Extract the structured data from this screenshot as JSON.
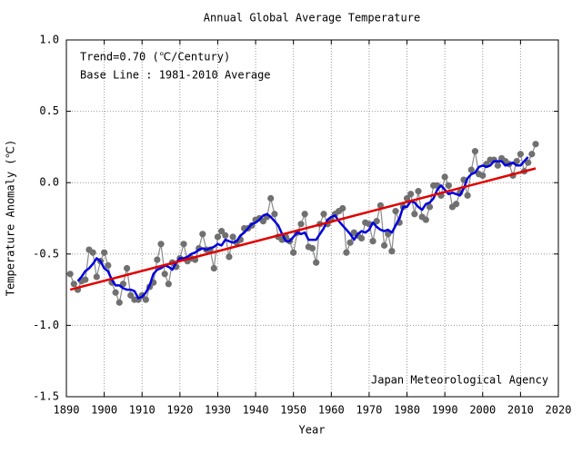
{
  "chart_data": {
    "type": "line",
    "title": "Annual Global Average Temperature",
    "xlabel": "Year",
    "ylabel": "Temperature Anomaly (℃)",
    "annotations": [
      "Trend=0.70 (℃/Century)",
      "Base Line : 1981-2010 Average",
      "Japan Meteorological Agency"
    ],
    "xlim": [
      1890,
      2020
    ],
    "xticks": [
      1890,
      1900,
      1910,
      1920,
      1930,
      1940,
      1950,
      1960,
      1970,
      1980,
      1990,
      2000,
      2010,
      2020
    ],
    "ylim": [
      -1.5,
      1.0
    ],
    "yticks": [
      {
        "value": 1.0,
        "label": "1.0"
      },
      0.5,
      {
        "value": 0.0,
        "label": "0.0"
      },
      -0.5,
      {
        "value": -1.0,
        "label": "-1.0"
      },
      -1.5
    ],
    "grid": true,
    "x": [
      1891,
      1892,
      1893,
      1894,
      1895,
      1896,
      1897,
      1898,
      1899,
      1900,
      1901,
      1902,
      1903,
      1904,
      1905,
      1906,
      1907,
      1908,
      1909,
      1910,
      1911,
      1912,
      1913,
      1914,
      1915,
      1916,
      1917,
      1918,
      1919,
      1920,
      1921,
      1922,
      1923,
      1924,
      1925,
      1926,
      1927,
      1928,
      1929,
      1930,
      1931,
      1932,
      1933,
      1934,
      1935,
      1936,
      1937,
      1938,
      1939,
      1940,
      1941,
      1942,
      1943,
      1944,
      1945,
      1946,
      1947,
      1948,
      1949,
      1950,
      1951,
      1952,
      1953,
      1954,
      1955,
      1956,
      1957,
      1958,
      1959,
      1960,
      1961,
      1962,
      1963,
      1964,
      1965,
      1966,
      1967,
      1968,
      1969,
      1970,
      1971,
      1972,
      1973,
      1974,
      1975,
      1976,
      1977,
      1978,
      1979,
      1980,
      1981,
      1982,
      1983,
      1984,
      1985,
      1986,
      1987,
      1988,
      1989,
      1990,
      1991,
      1992,
      1993,
      1994,
      1995,
      1996,
      1997,
      1998,
      1999,
      2000,
      2001,
      2002,
      2003,
      2004,
      2005,
      2006,
      2007,
      2008,
      2009,
      2010,
      2011,
      2012,
      2013,
      2014
    ],
    "series": [
      {
        "color": "#707070",
        "style": "points",
        "values": [
          -0.64,
          -0.71,
          -0.75,
          -0.69,
          -0.68,
          -0.47,
          -0.49,
          -0.66,
          -0.55,
          -0.49,
          -0.58,
          -0.7,
          -0.77,
          -0.84,
          -0.71,
          -0.6,
          -0.79,
          -0.82,
          -0.82,
          -0.79,
          -0.82,
          -0.73,
          -0.7,
          -0.54,
          -0.43,
          -0.64,
          -0.71,
          -0.56,
          -0.59,
          -0.53,
          -0.43,
          -0.55,
          -0.53,
          -0.54,
          -0.46,
          -0.36,
          -0.47,
          -0.47,
          -0.6,
          -0.38,
          -0.34,
          -0.37,
          -0.52,
          -0.38,
          -0.42,
          -0.4,
          -0.32,
          -0.32,
          -0.3,
          -0.26,
          -0.25,
          -0.27,
          -0.24,
          -0.11,
          -0.22,
          -0.38,
          -0.4,
          -0.38,
          -0.41,
          -0.49,
          -0.35,
          -0.29,
          -0.22,
          -0.45,
          -0.46,
          -0.56,
          -0.29,
          -0.22,
          -0.29,
          -0.26,
          -0.22,
          -0.2,
          -0.18,
          -0.49,
          -0.42,
          -0.35,
          -0.37,
          -0.39,
          -0.28,
          -0.29,
          -0.41,
          -0.27,
          -0.16,
          -0.44,
          -0.36,
          -0.48,
          -0.2,
          -0.28,
          -0.17,
          -0.11,
          -0.08,
          -0.22,
          -0.06,
          -0.24,
          -0.26,
          -0.17,
          -0.02,
          -0.02,
          -0.09,
          0.04,
          -0.02,
          -0.17,
          -0.15,
          -0.07,
          0.02,
          -0.09,
          0.09,
          0.22,
          0.06,
          0.05,
          0.13,
          0.16,
          0.16,
          0.12,
          0.17,
          0.15,
          0.13,
          0.05,
          0.15,
          0.2,
          0.08,
          0.14,
          0.2,
          0.27
        ]
      },
      {
        "color": "#0000dd",
        "style": "line",
        "values": [
          null,
          null,
          -0.69,
          -0.66,
          -0.62,
          -0.6,
          -0.57,
          -0.53,
          -0.55,
          -0.6,
          -0.62,
          -0.68,
          -0.72,
          -0.72,
          -0.74,
          -0.75,
          -0.75,
          -0.76,
          -0.81,
          -0.8,
          -0.77,
          -0.72,
          -0.64,
          -0.61,
          -0.6,
          -0.58,
          -0.59,
          -0.61,
          -0.56,
          -0.53,
          -0.53,
          -0.52,
          -0.5,
          -0.49,
          -0.47,
          -0.46,
          -0.47,
          -0.46,
          -0.45,
          -0.43,
          -0.44,
          -0.4,
          -0.41,
          -0.42,
          -0.41,
          -0.37,
          -0.35,
          -0.32,
          -0.29,
          -0.28,
          -0.26,
          -0.23,
          -0.22,
          -0.24,
          -0.27,
          -0.3,
          -0.36,
          -0.41,
          -0.41,
          -0.38,
          -0.35,
          -0.36,
          -0.35,
          -0.4,
          -0.4,
          -0.4,
          -0.36,
          -0.32,
          -0.26,
          -0.24,
          -0.23,
          -0.27,
          -0.3,
          -0.33,
          -0.36,
          -0.4,
          -0.36,
          -0.34,
          -0.35,
          -0.33,
          -0.28,
          -0.31,
          -0.33,
          -0.34,
          -0.33,
          -0.35,
          -0.3,
          -0.25,
          -0.17,
          -0.17,
          -0.13,
          -0.14,
          -0.17,
          -0.19,
          -0.15,
          -0.14,
          -0.11,
          -0.05,
          -0.02,
          -0.05,
          -0.08,
          -0.07,
          -0.08,
          -0.09,
          -0.04,
          0.03,
          0.06,
          0.07,
          0.11,
          0.12,
          0.11,
          0.12,
          0.15,
          0.15,
          0.15,
          0.12,
          0.13,
          0.14,
          0.12,
          0.12,
          0.15,
          0.18,
          null,
          null
        ]
      },
      {
        "color": "#e00000",
        "style": "line",
        "x": [
          1891,
          2014
        ],
        "values": [
          -0.75,
          0.1
        ]
      }
    ]
  }
}
